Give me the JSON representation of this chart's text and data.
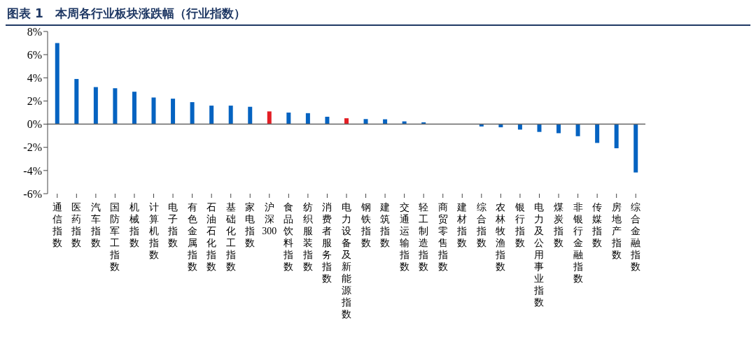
{
  "chart_data": {
    "type": "bar",
    "title": "图表 1　本周各行业板块涨跌幅（行业指数）",
    "categories": [
      "通信指数",
      "医药指数",
      "汽车指数",
      "国防军工指数",
      "机械指数",
      "计算机指数",
      "电子指数",
      "有色金属指数",
      "石油石化指数",
      "基础化工指数",
      "家电指数",
      "沪深300",
      "食品饮料指数",
      "纺织服装指数",
      "消费者服务指数",
      "电力设备及新能源指数",
      "钢铁指数",
      "建筑指数",
      "交通运输指数",
      "轻工制造指数",
      "商贸零售指数",
      "建材指数",
      "综合指数",
      "农林牧渔指数",
      "银行指数",
      "电力及公用事业指数",
      "煤炭指数",
      "非银行金融指数",
      "传媒指数",
      "房地产指数",
      "综合金融指数"
    ],
    "values": [
      7.0,
      3.9,
      3.2,
      3.1,
      2.8,
      2.3,
      2.2,
      1.9,
      1.6,
      1.6,
      1.5,
      1.1,
      1.0,
      0.95,
      0.64,
      0.51,
      0.44,
      0.42,
      0.24,
      0.16,
      0.01,
      0.0,
      -0.2,
      -0.27,
      -0.47,
      -0.67,
      -0.78,
      -1.04,
      -1.62,
      -2.08,
      -4.17
    ],
    "colors": [
      "#0563c1",
      "#0563c1",
      "#0563c1",
      "#0563c1",
      "#0563c1",
      "#0563c1",
      "#0563c1",
      "#0563c1",
      "#0563c1",
      "#0563c1",
      "#0563c1",
      "#e31e24",
      "#0563c1",
      "#0563c1",
      "#0563c1",
      "#e31e24",
      "#0563c1",
      "#0563c1",
      "#0563c1",
      "#0563c1",
      "#0563c1",
      "#0563c1",
      "#0563c1",
      "#0563c1",
      "#0563c1",
      "#0563c1",
      "#0563c1",
      "#0563c1",
      "#0563c1",
      "#0563c1",
      "#0563c1"
    ],
    "ylim": [
      -6,
      8
    ],
    "yticks": [
      {
        "value": -6,
        "label": "-6%"
      },
      {
        "value": -4,
        "label": "-4%"
      },
      {
        "value": -2,
        "label": "-2%"
      },
      {
        "value": 0,
        "label": "0%"
      },
      {
        "value": 2,
        "label": "2%"
      },
      {
        "value": 4,
        "label": "4%"
      },
      {
        "value": 6,
        "label": "6%"
      },
      {
        "value": 8,
        "label": "8%"
      }
    ],
    "legend": false
  }
}
